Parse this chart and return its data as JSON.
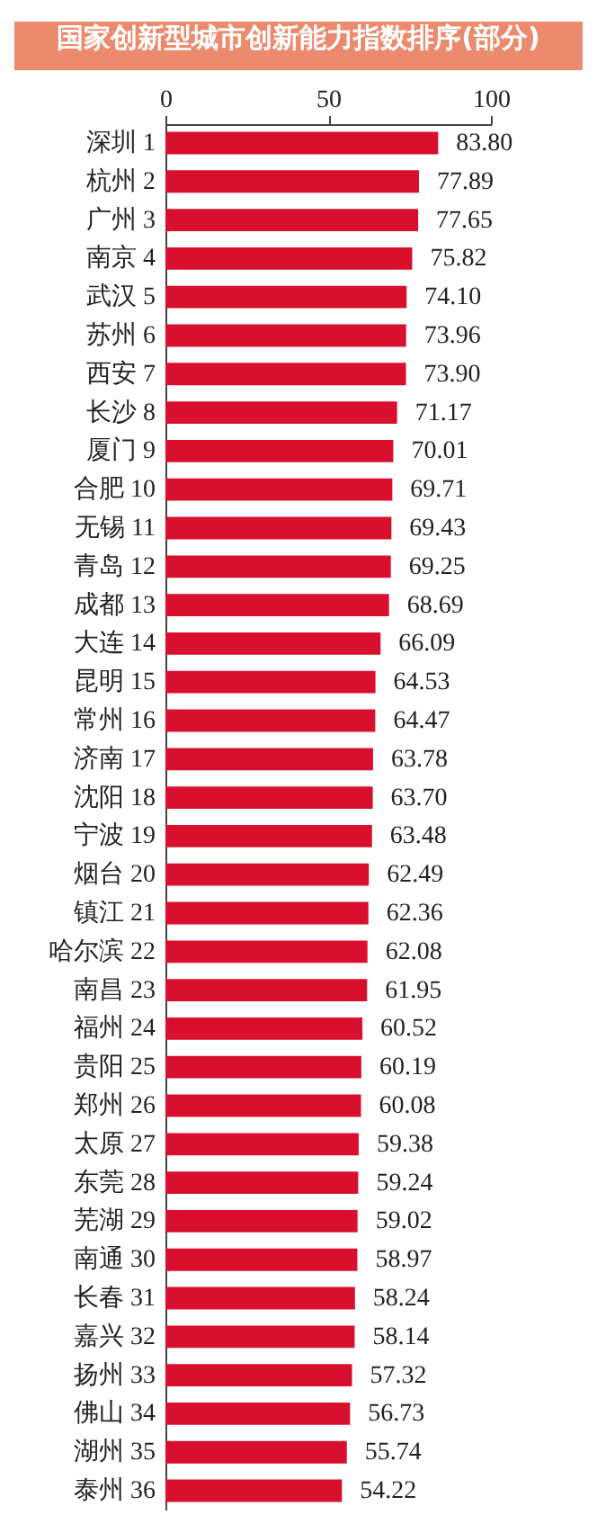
{
  "chart_data": {
    "type": "bar",
    "orientation": "horizontal",
    "title": "国家创新型城市创新能力指数排序(部分)",
    "categories": [
      "深圳 1",
      "杭州 2",
      "广州 3",
      "南京 4",
      "武汉 5",
      "苏州 6",
      "西安 7",
      "长沙 8",
      "厦门 9",
      "合肥 10",
      "无锡 11",
      "青岛 12",
      "成都 13",
      "大连 14",
      "昆明 15",
      "常州 16",
      "济南 17",
      "沈阳 18",
      "宁波 19",
      "烟台 20",
      "镇江 21",
      "哈尔滨 22",
      "南昌 23",
      "福州 24",
      "贵阳 25",
      "郑州 26",
      "太原 27",
      "东莞 28",
      "芜湖 29",
      "南通 30",
      "长春 31",
      "嘉兴 32",
      "扬州 33",
      "佛山 34",
      "湖州 35",
      "泰州 36"
    ],
    "values": [
      83.8,
      77.89,
      77.65,
      75.82,
      74.1,
      73.96,
      73.9,
      71.17,
      70.01,
      69.71,
      69.43,
      69.25,
      68.69,
      66.09,
      64.53,
      64.47,
      63.78,
      63.7,
      63.48,
      62.49,
      62.36,
      62.08,
      61.95,
      60.52,
      60.19,
      60.08,
      59.38,
      59.24,
      59.02,
      58.97,
      58.24,
      58.14,
      57.32,
      56.73,
      55.74,
      54.22
    ],
    "value_labels": [
      "83.80",
      "77.89",
      "77.65",
      "75.82",
      "74.10",
      "73.96",
      "73.90",
      "71.17",
      "70.01",
      "69.71",
      "69.43",
      "69.25",
      "68.69",
      "66.09",
      "64.53",
      "64.47",
      "63.78",
      "63.70",
      "63.48",
      "62.49",
      "62.36",
      "62.08",
      "61.95",
      "60.52",
      "60.19",
      "60.08",
      "59.38",
      "59.24",
      "59.02",
      "58.97",
      "58.24",
      "58.14",
      "57.32",
      "56.73",
      "55.74",
      "54.22"
    ],
    "color": "#d80f2d",
    "xlim": [
      0,
      100
    ],
    "xticks": [
      0,
      50,
      100
    ],
    "grid": false
  }
}
